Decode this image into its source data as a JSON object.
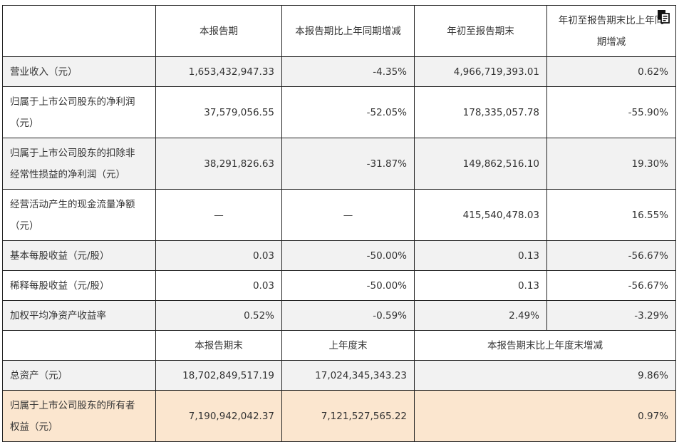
{
  "header": {
    "blank": "",
    "col1": "本报告期",
    "col2": "本报告期比上年同期增减",
    "col3": "年初至报告期末",
    "col4_line1": "年初至报告期末比上年同",
    "col4_line2": "期增减"
  },
  "rows": [
    {
      "label": "营业收入（元）",
      "v1": "1,653,432,947.33",
      "v2": "-4.35%",
      "v3": "4,966,719,393.01",
      "v4": "0.62%"
    },
    {
      "label_line1": "归属于上市公司股东的净利润",
      "label_line2": "（元）",
      "v1": "37,579,056.55",
      "v2": "-52.05%",
      "v3": "178,335,057.78",
      "v4": "-55.90%"
    },
    {
      "label_line1": "归属于上市公司股东的扣除非",
      "label_line2": "经常性损益的净利润（元）",
      "v1": "38,291,826.63",
      "v2": "-31.87%",
      "v3": "149,862,516.10",
      "v4": "19.30%"
    },
    {
      "label_line1": "经营活动产生的现金流量净额",
      "label_line2": "（元）",
      "v1": "—",
      "v2": "—",
      "v3": "415,540,478.03",
      "v4": "16.55%"
    },
    {
      "label": "基本每股收益（元/股）",
      "v1": "0.03",
      "v2": "-50.00%",
      "v3": "0.13",
      "v4": "-56.67%"
    },
    {
      "label": "稀释每股收益（元/股）",
      "v1": "0.03",
      "v2": "-50.00%",
      "v3": "0.13",
      "v4": "-56.67%"
    },
    {
      "label": "加权平均净资产收益率",
      "v1": "0.52%",
      "v2": "-0.59%",
      "v3": "2.49%",
      "v4": "-3.29%"
    }
  ],
  "header2": {
    "col1": "本报告期末",
    "col2": "上年度末",
    "col3": "本报告期末比上年度末增减"
  },
  "rows2": [
    {
      "label": "总资产（元）",
      "v1": "18,702,849,517.19",
      "v2": "17,024,345,343.23",
      "v3": "9.86%"
    },
    {
      "label_line1": "归属于上市公司股东的所有者",
      "label_line2": "权益（元）",
      "v1": "7,190,942,042.37",
      "v2": "7,121,527,565.22",
      "v3": "0.97%"
    }
  ],
  "icons": {
    "copy": "copy-icon"
  }
}
